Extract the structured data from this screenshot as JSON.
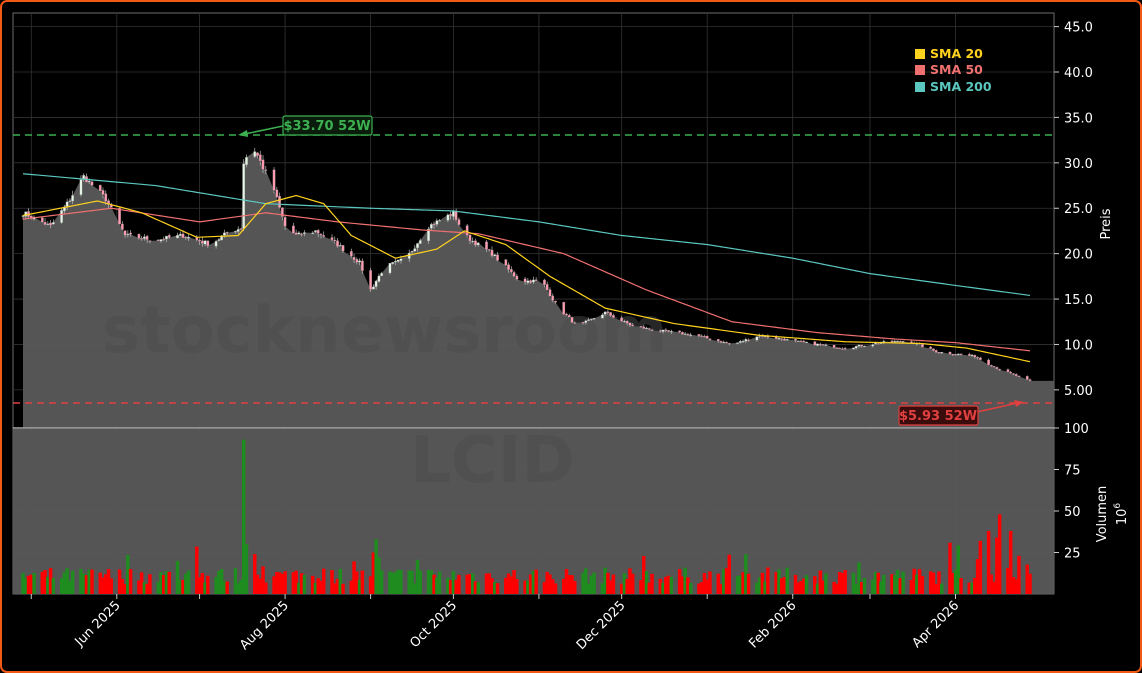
{
  "watermark": {
    "site": "stocknewsroom",
    "ticker": "LCID"
  },
  "colors": {
    "up": "#1e8c1e",
    "down": "#ff0000",
    "area": "#5a5a5a",
    "sma20": "#ffd21e",
    "sma50": "#f07070",
    "sma200": "#5bc8c0",
    "high_line": "#3cb050",
    "low_line": "#e04040",
    "frame": "#f05a14"
  },
  "chart_data": [
    {
      "type": "line",
      "title": "",
      "ylabel": "Preis",
      "ylim": [
        0.8,
        46.5
      ],
      "yticks": [
        "5.00",
        "10.0",
        "15.0",
        "20.0",
        "25.0",
        "30.0",
        "35.0",
        "40.0",
        "45.0"
      ],
      "x_start": "2025-04-28",
      "x_end": "2026-04-28",
      "xticks": [
        "Jun 2025",
        "Aug 2025",
        "Oct 2025",
        "Dec 2025",
        "Feb 2026",
        "Apr 2026"
      ],
      "legend": {
        "position": "top-right",
        "items": [
          "SMA 20",
          "SMA 50",
          "SMA 200"
        ]
      },
      "annotations": {
        "high": {
          "label": "$33.70 52W",
          "value": 33.7
        },
        "low": {
          "label": "$5.93 52W",
          "value": 5.93
        }
      },
      "price_anchors": [
        [
          "2025-04-28",
          24.5
        ],
        [
          "2025-05-08",
          23.0
        ],
        [
          "2025-05-14",
          25.5
        ],
        [
          "2025-05-20",
          28.5
        ],
        [
          "2025-05-28",
          26.0
        ],
        [
          "2025-06-04",
          22.0
        ],
        [
          "2025-06-15",
          21.5
        ],
        [
          "2025-06-25",
          22.0
        ],
        [
          "2025-07-05",
          21.0
        ],
        [
          "2025-07-12",
          22.5
        ],
        [
          "2025-07-16",
          22.8
        ],
        [
          "2025-07-17",
          30.0
        ],
        [
          "2025-07-20",
          32.0
        ],
        [
          "2025-07-28",
          27.0
        ],
        [
          "2025-08-01",
          23.0
        ],
        [
          "2025-08-05",
          22.0
        ],
        [
          "2025-08-12",
          22.5
        ],
        [
          "2025-08-20",
          21.0
        ],
        [
          "2025-08-28",
          19.0
        ],
        [
          "2025-09-01",
          16.0
        ],
        [
          "2025-09-06",
          18.5
        ],
        [
          "2025-09-14",
          19.5
        ],
        [
          "2025-09-22",
          23.0
        ],
        [
          "2025-10-01",
          24.5
        ],
        [
          "2025-10-05",
          22.0
        ],
        [
          "2025-10-15",
          20.0
        ],
        [
          "2025-10-25",
          17.0
        ],
        [
          "2025-11-02",
          17.0
        ],
        [
          "2025-11-08",
          14.0
        ],
        [
          "2025-11-15",
          12.0
        ],
        [
          "2025-11-25",
          13.5
        ],
        [
          "2025-12-05",
          12.0
        ],
        [
          "2025-12-15",
          11.5
        ],
        [
          "2025-12-28",
          11.0
        ],
        [
          "2026-01-10",
          10.0
        ],
        [
          "2026-01-20",
          11.0
        ],
        [
          "2026-02-05",
          10.2
        ],
        [
          "2026-02-20",
          9.6
        ],
        [
          "2026-03-05",
          10.2
        ],
        [
          "2026-03-15",
          10.4
        ],
        [
          "2026-03-25",
          9.2
        ],
        [
          "2026-04-08",
          8.7
        ],
        [
          "2026-04-15",
          7.5
        ],
        [
          "2026-04-28",
          5.95
        ]
      ],
      "sma20_anchors": [
        [
          "2025-04-28",
          24.2
        ],
        [
          "2025-05-25",
          25.8
        ],
        [
          "2025-06-10",
          24.5
        ],
        [
          "2025-06-30",
          21.8
        ],
        [
          "2025-07-15",
          22.0
        ],
        [
          "2025-07-25",
          25.5
        ],
        [
          "2025-08-05",
          26.4
        ],
        [
          "2025-08-15",
          25.5
        ],
        [
          "2025-08-25",
          22.0
        ],
        [
          "2025-09-10",
          19.5
        ],
        [
          "2025-09-25",
          20.5
        ],
        [
          "2025-10-05",
          22.5
        ],
        [
          "2025-10-20",
          21.0
        ],
        [
          "2025-11-05",
          17.5
        ],
        [
          "2025-11-25",
          14.0
        ],
        [
          "2025-12-20",
          12.3
        ],
        [
          "2026-01-20",
          11.0
        ],
        [
          "2026-02-20",
          10.3
        ],
        [
          "2026-03-20",
          10.1
        ],
        [
          "2026-04-05",
          9.6
        ],
        [
          "2026-04-28",
          8.1
        ]
      ],
      "sma50_anchors": [
        [
          "2025-04-28",
          23.8
        ],
        [
          "2025-05-30",
          25.0
        ],
        [
          "2025-07-01",
          23.5
        ],
        [
          "2025-07-25",
          24.5
        ],
        [
          "2025-08-20",
          23.5
        ],
        [
          "2025-09-20",
          22.6
        ],
        [
          "2025-10-10",
          22.2
        ],
        [
          "2025-11-10",
          20.0
        ],
        [
          "2025-12-10",
          16.0
        ],
        [
          "2026-01-10",
          12.5
        ],
        [
          "2026-02-10",
          11.3
        ],
        [
          "2026-03-10",
          10.6
        ],
        [
          "2026-04-01",
          10.2
        ],
        [
          "2026-04-28",
          9.3
        ]
      ],
      "sma200_anchors": [
        [
          "2025-04-28",
          28.8
        ],
        [
          "2025-06-15",
          27.5
        ],
        [
          "2025-07-25",
          25.5
        ],
        [
          "2025-09-01",
          25.0
        ],
        [
          "2025-10-01",
          24.7
        ],
        [
          "2025-11-01",
          23.5
        ],
        [
          "2025-12-01",
          22.0
        ],
        [
          "2026-01-01",
          21.0
        ],
        [
          "2026-02-01",
          19.5
        ],
        [
          "2026-03-01",
          17.8
        ],
        [
          "2026-04-01",
          16.5
        ],
        [
          "2026-04-28",
          15.4
        ]
      ]
    },
    {
      "type": "bar",
      "ylabel": "Volumen",
      "yunit": "6",
      "ylim": [
        0,
        100
      ],
      "yticks": [
        "25",
        "50",
        "75",
        "100"
      ],
      "volume_events": [
        [
          "2025-07-17",
          93,
          "up"
        ],
        [
          "2025-07-18",
          30,
          "up"
        ],
        [
          "2025-07-21",
          24,
          "down"
        ],
        [
          "2025-09-02",
          25,
          "down"
        ],
        [
          "2025-09-03",
          33,
          "up"
        ],
        [
          "2025-09-04",
          22,
          "up"
        ],
        [
          "2026-01-15",
          24,
          "up"
        ],
        [
          "2026-04-10",
          32,
          "down"
        ],
        [
          "2026-04-13",
          38,
          "down"
        ],
        [
          "2026-04-16",
          34,
          "down"
        ],
        [
          "2026-04-17",
          48,
          "down"
        ],
        [
          "2026-04-21",
          38,
          "down"
        ],
        [
          "2026-04-24",
          23,
          "down"
        ]
      ]
    }
  ]
}
